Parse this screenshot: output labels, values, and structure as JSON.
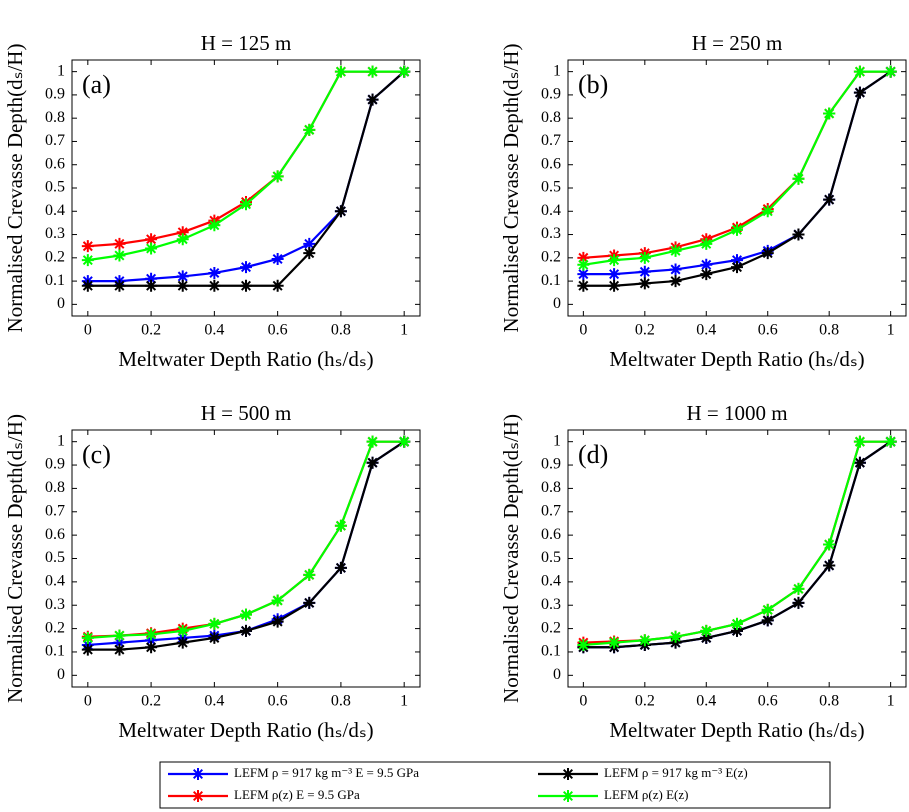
{
  "chart_data": [
    {
      "type": "line",
      "title": "H = 125 m",
      "panel_label": "(a)",
      "x_label": "Meltwater Depth Ratio (hₛ/dₛ)",
      "y_label": "Normalised Crevasse Depth(dₛ/H)",
      "x": [
        0,
        0.1,
        0.2,
        0.3,
        0.4,
        0.5,
        0.6,
        0.7,
        0.8,
        0.9,
        1
      ],
      "xlim": [
        -0.05,
        1.05
      ],
      "ylim": [
        -0.05,
        1.05
      ],
      "xticks": [
        0,
        0.2,
        0.4,
        0.6,
        0.8,
        1
      ],
      "yticks": [
        0,
        0.1,
        0.2,
        0.3,
        0.4,
        0.5,
        0.6,
        0.7,
        0.8,
        0.9,
        1
      ],
      "series": [
        {
          "name": "LEFM ρ = 917 kg m⁻³ E = 9.5 GPa",
          "color": "#0000ff",
          "values": [
            0.1,
            0.1,
            0.11,
            0.12,
            0.135,
            0.16,
            0.195,
            0.26,
            0.4,
            0.88,
            1
          ]
        },
        {
          "name": "LEFM ρ(z) E = 9.5 GPa",
          "color": "#ff0000",
          "values": [
            0.25,
            0.26,
            0.28,
            0.31,
            0.36,
            0.44,
            0.55,
            0.75,
            1,
            1,
            1
          ]
        },
        {
          "name": "LEFM ρ = 917 kg m⁻³ E(z)",
          "color": "#000000",
          "values": [
            0.08,
            0.08,
            0.08,
            0.08,
            0.08,
            0.08,
            0.08,
            0.22,
            0.4,
            0.88,
            1
          ]
        },
        {
          "name": "LEFM ρ(z) E(z)",
          "color": "#00ff00",
          "values": [
            0.19,
            0.21,
            0.24,
            0.28,
            0.34,
            0.43,
            0.55,
            0.75,
            1,
            1,
            1
          ]
        }
      ]
    },
    {
      "type": "line",
      "title": "H = 250 m",
      "panel_label": "(b)",
      "x_label": "Meltwater Depth Ratio (hₛ/dₛ)",
      "y_label": "Normalised Crevasse Depth(dₛ/H)",
      "x": [
        0,
        0.1,
        0.2,
        0.3,
        0.4,
        0.5,
        0.6,
        0.7,
        0.8,
        0.9,
        1
      ],
      "xlim": [
        -0.05,
        1.05
      ],
      "ylim": [
        -0.05,
        1.05
      ],
      "xticks": [
        0,
        0.2,
        0.4,
        0.6,
        0.8,
        1
      ],
      "yticks": [
        0,
        0.1,
        0.2,
        0.3,
        0.4,
        0.5,
        0.6,
        0.7,
        0.8,
        0.9,
        1
      ],
      "series": [
        {
          "color": "#0000ff",
          "values": [
            0.13,
            0.13,
            0.14,
            0.15,
            0.17,
            0.19,
            0.23,
            0.3,
            0.45,
            0.91,
            1
          ]
        },
        {
          "color": "#ff0000",
          "values": [
            0.2,
            0.21,
            0.22,
            0.245,
            0.28,
            0.33,
            0.41,
            0.54,
            0.82,
            1,
            1
          ]
        },
        {
          "color": "#000000",
          "values": [
            0.08,
            0.08,
            0.09,
            0.1,
            0.13,
            0.16,
            0.22,
            0.3,
            0.45,
            0.91,
            1
          ]
        },
        {
          "color": "#00ff00",
          "values": [
            0.17,
            0.19,
            0.2,
            0.23,
            0.26,
            0.32,
            0.4,
            0.54,
            0.82,
            1,
            1
          ]
        }
      ]
    },
    {
      "type": "line",
      "title": "H = 500 m",
      "panel_label": "(c)",
      "x_label": "Meltwater Depth Ratio (hₛ/dₛ)",
      "y_label": "Normalised Crevasse Depth(dₛ/H)",
      "x": [
        0,
        0.1,
        0.2,
        0.3,
        0.4,
        0.5,
        0.6,
        0.7,
        0.8,
        0.9,
        1
      ],
      "xlim": [
        -0.05,
        1.05
      ],
      "ylim": [
        -0.05,
        1.05
      ],
      "xticks": [
        0,
        0.2,
        0.4,
        0.6,
        0.8,
        1
      ],
      "yticks": [
        0,
        0.1,
        0.2,
        0.3,
        0.4,
        0.5,
        0.6,
        0.7,
        0.8,
        0.9,
        1
      ],
      "series": [
        {
          "color": "#0000ff",
          "values": [
            0.13,
            0.14,
            0.15,
            0.16,
            0.17,
            0.19,
            0.24,
            0.31,
            0.46,
            0.91,
            1
          ]
        },
        {
          "color": "#ff0000",
          "values": [
            0.165,
            0.17,
            0.18,
            0.2,
            0.22,
            0.26,
            0.32,
            0.43,
            0.64,
            1,
            1
          ]
        },
        {
          "color": "#000000",
          "values": [
            0.11,
            0.11,
            0.12,
            0.14,
            0.16,
            0.19,
            0.23,
            0.31,
            0.46,
            0.91,
            1
          ]
        },
        {
          "color": "#00ff00",
          "values": [
            0.16,
            0.17,
            0.175,
            0.19,
            0.22,
            0.26,
            0.32,
            0.43,
            0.64,
            1,
            1
          ]
        }
      ]
    },
    {
      "type": "line",
      "title": "H = 1000 m",
      "panel_label": "(d)",
      "x_label": "Meltwater Depth Ratio (hₛ/dₛ)",
      "y_label": "Normalised Crevasse Depth(dₛ/H)",
      "x": [
        0,
        0.1,
        0.2,
        0.3,
        0.4,
        0.5,
        0.6,
        0.7,
        0.8,
        0.9,
        1
      ],
      "xlim": [
        -0.05,
        1.05
      ],
      "ylim": [
        -0.05,
        1.05
      ],
      "xticks": [
        0,
        0.2,
        0.4,
        0.6,
        0.8,
        1
      ],
      "yticks": [
        0,
        0.1,
        0.2,
        0.3,
        0.4,
        0.5,
        0.6,
        0.7,
        0.8,
        0.9,
        1
      ],
      "series": [
        {
          "color": "#0000ff",
          "values": [
            0.12,
            0.12,
            0.13,
            0.14,
            0.16,
            0.19,
            0.235,
            0.31,
            0.47,
            0.91,
            1
          ]
        },
        {
          "color": "#ff0000",
          "values": [
            0.14,
            0.145,
            0.15,
            0.165,
            0.19,
            0.22,
            0.28,
            0.37,
            0.56,
            1,
            1
          ]
        },
        {
          "color": "#000000",
          "values": [
            0.12,
            0.12,
            0.13,
            0.14,
            0.16,
            0.19,
            0.235,
            0.31,
            0.47,
            0.91,
            1
          ]
        },
        {
          "color": "#00ff00",
          "values": [
            0.13,
            0.14,
            0.15,
            0.165,
            0.19,
            0.22,
            0.28,
            0.37,
            0.56,
            1,
            1
          ]
        }
      ]
    }
  ]
}
